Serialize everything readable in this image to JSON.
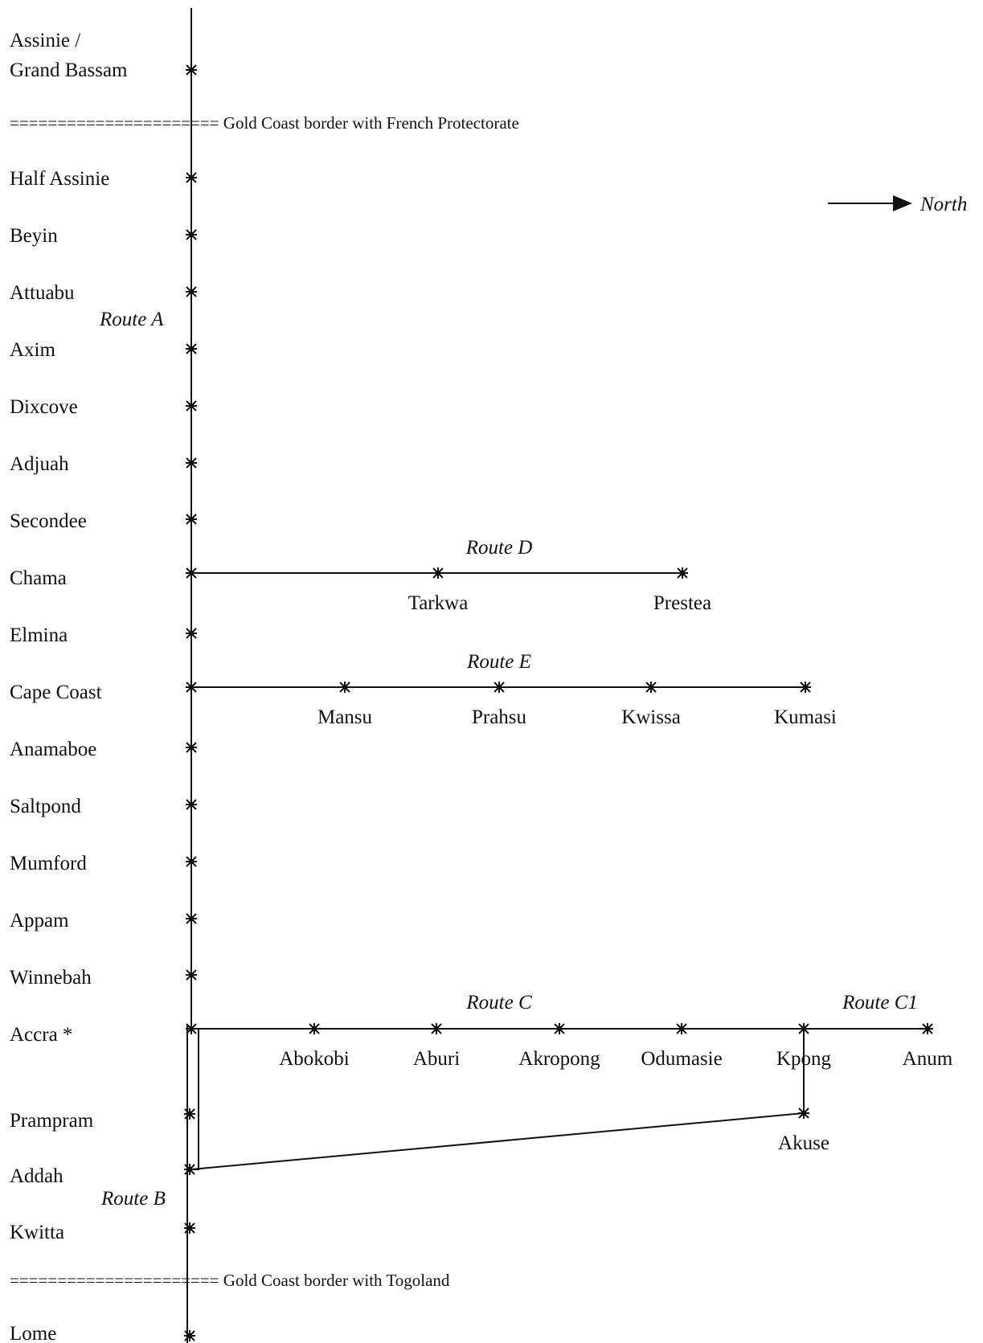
{
  "coastal_towns": [
    "Assinie /",
    "Grand Bassam",
    "Half Assinie",
    "Beyin",
    "Attuabu",
    "Axim",
    "Dixcove",
    "Adjuah",
    "Secondee",
    "Chama",
    "Elmina",
    "Cape Coast",
    "Anamaboe",
    "Saltpond",
    "Mumford",
    "Appam",
    "Winnebah",
    "Accra *",
    "Prampram",
    "Addah",
    "Kwitta",
    "Lome"
  ],
  "borders": {
    "french": "====================== Gold Coast border with French Protectorate",
    "togoland": "====================== Gold Coast border with Togoland"
  },
  "north_label": "North",
  "routes": {
    "a": "Route A",
    "b": "Route B",
    "c": "Route C",
    "c1": "Route C1",
    "d": "Route D",
    "e": "Route E"
  },
  "route_d_stops": [
    "Tarkwa",
    "Prestea"
  ],
  "route_e_stops": [
    "Mansu",
    "Prahsu",
    "Kwissa",
    "Kumasi"
  ],
  "route_c_stops": [
    "Abokobi",
    "Aburi",
    "Akropong",
    "Odumasie",
    "Kpong",
    "Anum"
  ],
  "branch_stop": "Akuse",
  "colors": {
    "ink": "#111111",
    "background": "#ffffff"
  }
}
